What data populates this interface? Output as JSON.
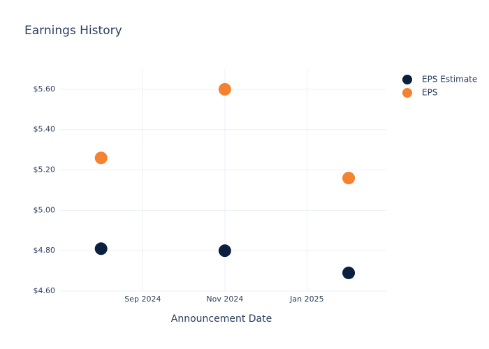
{
  "chart_data": {
    "type": "scatter",
    "title": "Earnings History",
    "x_label": "Announcement Date",
    "x": [
      "2024-08",
      "2024-11",
      "2025-02"
    ],
    "series": [
      {
        "name": "EPS Estimate",
        "color": "#0b1f3f",
        "values": [
          4.81,
          4.8,
          4.69
        ]
      },
      {
        "name": "EPS",
        "color": "#f58231",
        "values": [
          5.26,
          5.6,
          5.16
        ]
      }
    ],
    "xlim": [
      "2024-07",
      "2025-03"
    ],
    "xticks": [
      {
        "value": "2024-09",
        "label": "Sep 2024"
      },
      {
        "value": "2024-11",
        "label": "Nov 2024"
      },
      {
        "value": "2025-01",
        "label": "Jan 2025"
      }
    ],
    "ylim": [
      4.6,
      5.7
    ],
    "yticks": [
      {
        "value": 4.6,
        "label": "$4.60"
      },
      {
        "value": 4.8,
        "label": "$4.80"
      },
      {
        "value": 5.0,
        "label": "$5.00"
      },
      {
        "value": 5.2,
        "label": "$5.20"
      },
      {
        "value": 5.4,
        "label": "$5.40"
      },
      {
        "value": 5.6,
        "label": "$5.60"
      }
    ],
    "grid": true,
    "legend": "top-right"
  }
}
